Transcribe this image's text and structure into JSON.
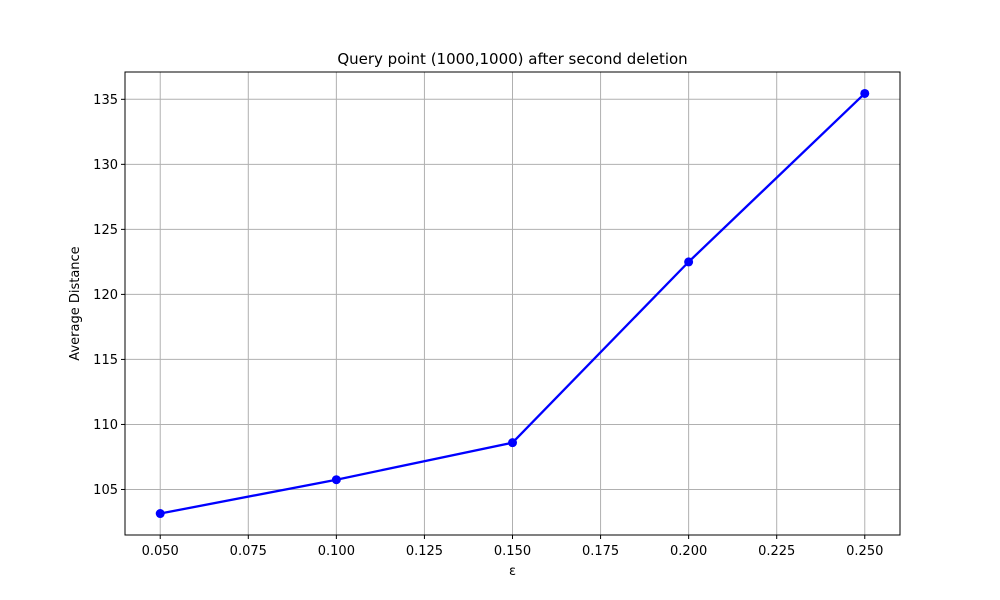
{
  "chart_data": {
    "type": "line",
    "title": "Query point (1000,1000) after second deletion",
    "xlabel": "ε",
    "ylabel": "Average Distance",
    "x": [
      0.05,
      0.1,
      0.15,
      0.2,
      0.25
    ],
    "series": [
      {
        "values": [
          103.15,
          105.75,
          108.6,
          122.5,
          135.45
        ],
        "color": "#0000ff",
        "marker": "circle"
      }
    ],
    "xlim": [
      0.04,
      0.26
    ],
    "ylim": [
      101.5,
      137.1
    ],
    "xticks": [
      "0.050",
      "0.075",
      "0.100",
      "0.125",
      "0.150",
      "0.175",
      "0.200",
      "0.225",
      "0.250"
    ],
    "yticks": [
      "105",
      "110",
      "115",
      "120",
      "125",
      "130",
      "135"
    ],
    "grid": true,
    "colors": {
      "line": "#0000ff",
      "grid": "#b0b0b0",
      "axes": "#000000"
    }
  }
}
